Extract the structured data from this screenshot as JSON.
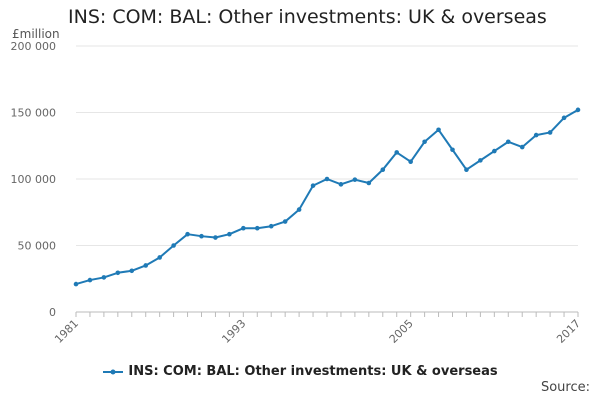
{
  "title": "INS: COM: BAL: Other investments: UK & overseas",
  "unit_label": "£million",
  "source_label": "Source:",
  "legend_label": "INS: COM: BAL: Other investments: UK & overseas",
  "colors": {
    "series": "#1f7ab6",
    "grid": "#e6e6e6",
    "axis": "#bbbbbb",
    "tick_text": "#666666"
  },
  "chart_data": {
    "type": "line",
    "title": "INS: COM: BAL: Other investments: UK & overseas",
    "ylabel": "£million",
    "xlabel": "",
    "ylim": [
      0,
      200000
    ],
    "xlim": [
      1981,
      2017
    ],
    "yticks": [
      0,
      50000,
      100000,
      150000,
      200000
    ],
    "ytick_labels": [
      "0",
      "50 000",
      "100 000",
      "150 000",
      "200 000"
    ],
    "xticks": [
      1981,
      1993,
      2005,
      2017
    ],
    "xtick_labels": [
      "1981",
      "1993",
      "2005",
      "2017"
    ],
    "grid": "horizontal",
    "legend_position": "bottom",
    "x": [
      1981,
      1982,
      1983,
      1984,
      1985,
      1986,
      1987,
      1988,
      1989,
      1990,
      1991,
      1992,
      1993,
      1994,
      1995,
      1996,
      1997,
      1998,
      1999,
      2000,
      2001,
      2002,
      2003,
      2004,
      2005,
      2006,
      2007,
      2008,
      2009,
      2010,
      2011,
      2012,
      2013,
      2014,
      2015,
      2016,
      2017
    ],
    "series": [
      {
        "name": "INS: COM: BAL: Other investments: UK & overseas",
        "values": [
          21000,
          24000,
          26000,
          29500,
          31000,
          35000,
          41000,
          50000,
          58500,
          57000,
          56000,
          58500,
          63000,
          63000,
          64500,
          68000,
          77000,
          95000,
          100000,
          96000,
          99500,
          97000,
          107000,
          120000,
          113000,
          128000,
          137000,
          122000,
          107000,
          114000,
          121000,
          128000,
          124000,
          133000,
          135000,
          146000,
          152000
        ]
      }
    ]
  }
}
